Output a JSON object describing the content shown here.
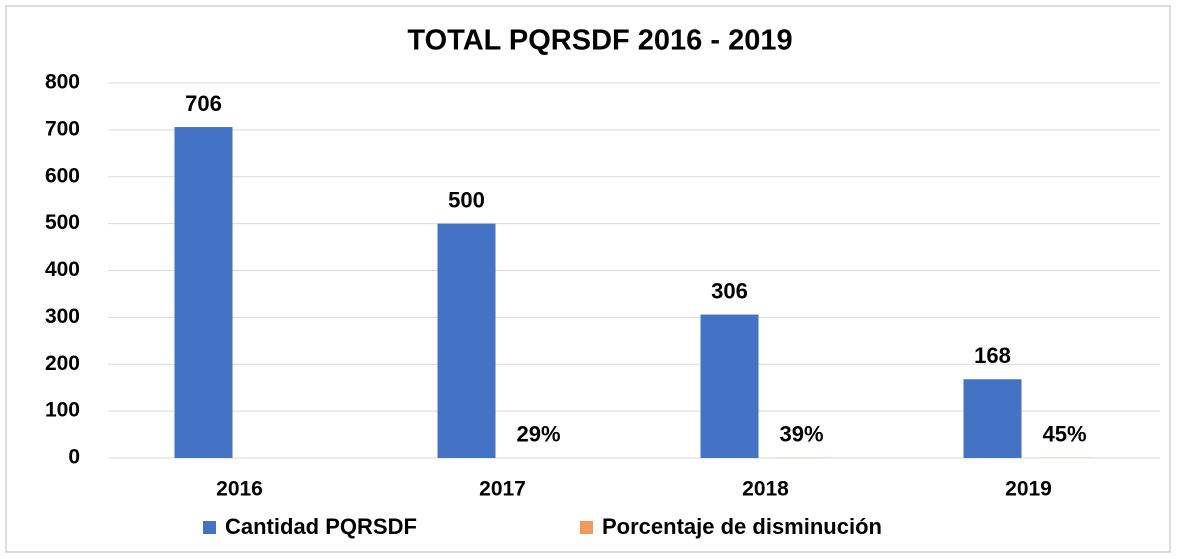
{
  "chart_data": {
    "type": "bar",
    "title": "TOTAL PQRSDF 2016 - 2019",
    "categories": [
      "2016",
      "2017",
      "2018",
      "2019"
    ],
    "series": [
      {
        "name": "Cantidad PQRSDF",
        "color": "#4472c4",
        "values": [
          706,
          500,
          306,
          168
        ]
      },
      {
        "name": "Porcentaje de disminución",
        "color": "#f19a5c",
        "values": [
          null,
          0.29,
          0.39,
          0.45
        ],
        "value_labels": [
          null,
          "29%",
          "39%",
          "45%"
        ]
      }
    ],
    "ylim": [
      0,
      800
    ],
    "yticks": [
      0,
      100,
      200,
      300,
      400,
      500,
      600,
      700,
      800
    ],
    "grid": true,
    "legend": "bottom"
  }
}
